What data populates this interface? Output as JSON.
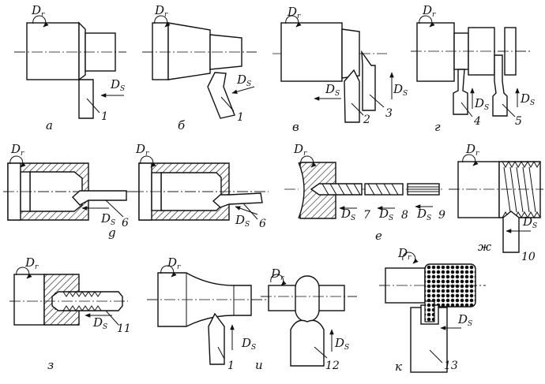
{
  "labels": {
    "rotation": "D",
    "rotation_sub": "r",
    "feed": "D",
    "feed_sub": "S"
  },
  "captions": [
    "а",
    "б",
    "в",
    "г",
    "g",
    "е",
    "ж",
    "з",
    "и",
    "к"
  ],
  "tool_numbers": {
    "a": "1",
    "b": "1",
    "v1": "2",
    "v2": "3",
    "g1": "4",
    "g2": "5",
    "d1": "6",
    "d2": "6",
    "e1": "7",
    "e2": "8",
    "e3": "9",
    "zh": "10",
    "z": "11",
    "i1": "1",
    "i2": "12",
    "k": "13"
  },
  "colors": {
    "line": "#111111",
    "background": "#ffffff"
  }
}
